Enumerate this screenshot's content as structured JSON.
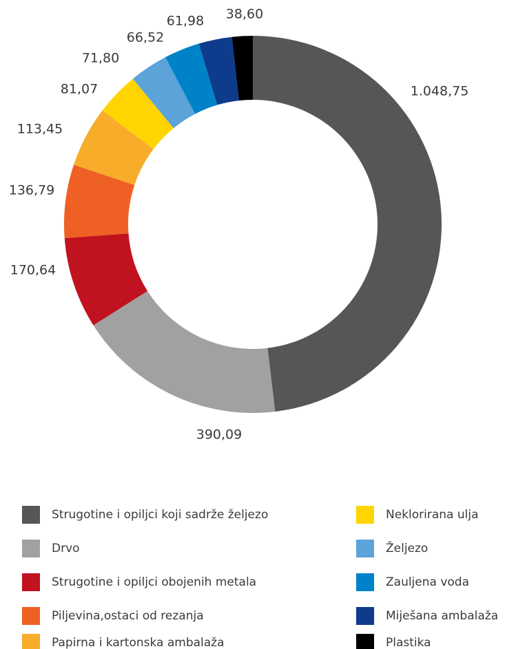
{
  "chart_data": {
    "type": "donut",
    "categories": [
      "Strugotine i opiljci koji sadrže željezo",
      "Drvo",
      "Strugotine i opiljci obojenih metala",
      "Piljevina,ostaci od rezanja",
      "Papirna i kartonska ambalaža",
      "Neklorirana ulja",
      "Željezo",
      "Zauljena voda",
      "Miješana ambalaža",
      "Plastika"
    ],
    "values": [
      1048.75,
      390.09,
      170.64,
      136.79,
      113.45,
      81.07,
      71.8,
      66.52,
      61.98,
      38.6
    ],
    "value_labels": [
      "1.048,75",
      "390,09",
      "170,64",
      "136,79",
      "113,45",
      "81,07",
      "71,80",
      "66,52",
      "61,98",
      "38,60"
    ],
    "colors": [
      "#555756",
      "#a0a1a0",
      "#c1121f",
      "#ee6023",
      "#f7ac2a",
      "#ffd400",
      "#5ba3d9",
      "#0082c8",
      "#0f3b8c",
      "#000000"
    ],
    "legend": "bottom"
  }
}
